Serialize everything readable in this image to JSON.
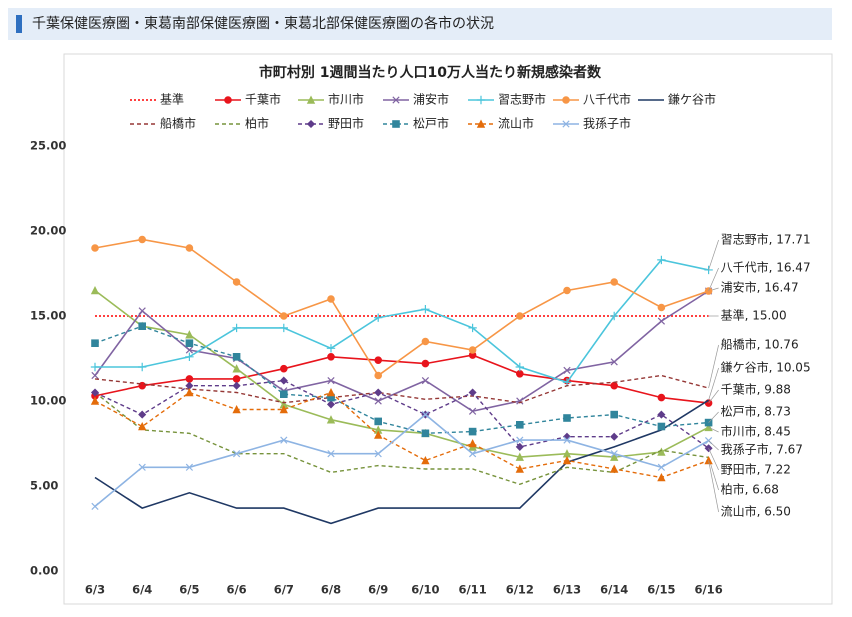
{
  "page_title": "千葉保健医療圏・東葛南部保健医療圏・東葛北部保健医療圏の各市の状況",
  "chart_data": {
    "type": "line",
    "title": "市町村別 1週間当たり人口10万人当たり新規感染者数",
    "categories": [
      "6/3",
      "6/4",
      "6/5",
      "6/6",
      "6/7",
      "6/8",
      "6/9",
      "6/10",
      "6/11",
      "6/12",
      "6/13",
      "6/14",
      "6/15",
      "6/16"
    ],
    "ylim": [
      0,
      25
    ],
    "yticks": [
      {
        "value": 0,
        "label": "0.00"
      },
      {
        "value": 5,
        "label": "5.00"
      },
      {
        "value": 10,
        "label": "10.00"
      },
      {
        "value": 15,
        "label": "15.00"
      },
      {
        "value": 20,
        "label": "20.00"
      },
      {
        "value": 25,
        "label": "25.00"
      }
    ],
    "series": [
      {
        "name": "基準",
        "color": "#ff0000",
        "dash": "dotted",
        "marker": "none",
        "values": [
          15,
          15,
          15,
          15,
          15,
          15,
          15,
          15,
          15,
          15,
          15,
          15,
          15,
          15
        ],
        "value_labels": [
          null,
          null,
          null,
          null,
          null,
          null,
          null,
          null,
          null,
          null,
          null,
          null,
          null,
          "基準, 15.00"
        ]
      },
      {
        "name": "千葉市",
        "color": "#e8141c",
        "dash": "solid",
        "marker": "circle",
        "values": [
          10.3,
          10.9,
          11.3,
          11.3,
          11.9,
          12.6,
          12.4,
          12.2,
          12.7,
          11.6,
          11.2,
          10.9,
          10.2,
          9.88
        ],
        "value_labels": [
          null,
          null,
          null,
          null,
          null,
          null,
          null,
          null,
          null,
          null,
          null,
          null,
          null,
          "千葉市, 9.88"
        ]
      },
      {
        "name": "市川市",
        "color": "#9bbb59",
        "dash": "solid",
        "marker": "triangle",
        "values": [
          16.5,
          14.4,
          13.9,
          11.9,
          9.8,
          8.9,
          8.3,
          8.1,
          7.3,
          6.7,
          6.9,
          6.7,
          7.0,
          8.45
        ],
        "value_labels": [
          null,
          null,
          null,
          null,
          null,
          null,
          null,
          null,
          null,
          null,
          null,
          null,
          null,
          "市川市, 8.45"
        ]
      },
      {
        "name": "浦安市",
        "color": "#8064a2",
        "dash": "solid",
        "marker": "x",
        "values": [
          11.5,
          15.3,
          13.0,
          12.5,
          10.6,
          11.2,
          10.0,
          11.2,
          9.4,
          10.0,
          11.8,
          12.3,
          14.7,
          16.47
        ],
        "value_labels": [
          null,
          null,
          null,
          null,
          null,
          null,
          null,
          null,
          null,
          null,
          null,
          null,
          null,
          "浦安市, 16.47"
        ]
      },
      {
        "name": "習志野市",
        "color": "#4bc5dc",
        "dash": "solid",
        "marker": "plus",
        "values": [
          12.0,
          12.0,
          12.6,
          14.3,
          14.3,
          13.1,
          14.9,
          15.4,
          14.3,
          12.0,
          11.1,
          15.0,
          18.3,
          17.71
        ],
        "value_labels": [
          null,
          null,
          null,
          null,
          null,
          null,
          null,
          null,
          null,
          null,
          null,
          null,
          null,
          "習志野市, 17.71"
        ]
      },
      {
        "name": "八千代市",
        "color": "#f79646",
        "dash": "solid",
        "marker": "circle",
        "values": [
          19.0,
          19.5,
          19.0,
          17.0,
          15.0,
          16.0,
          11.5,
          13.5,
          13.0,
          15.0,
          16.5,
          17.0,
          15.5,
          16.47
        ],
        "value_labels": [
          null,
          null,
          null,
          null,
          null,
          null,
          null,
          null,
          null,
          null,
          null,
          null,
          null,
          "八千代市, 16.47"
        ]
      },
      {
        "name": "鎌ケ谷市",
        "color": "#1f3864",
        "dash": "solid",
        "marker": "none",
        "values": [
          5.5,
          3.7,
          4.6,
          3.7,
          3.7,
          2.8,
          3.7,
          3.7,
          3.7,
          3.7,
          6.4,
          7.3,
          8.3,
          10.05
        ],
        "value_labels": [
          null,
          null,
          null,
          null,
          null,
          null,
          null,
          null,
          null,
          null,
          null,
          null,
          null,
          "鎌ケ谷市, 10.05"
        ]
      },
      {
        "name": "船橋市",
        "color": "#953735",
        "dash": "dashed",
        "marker": "none",
        "values": [
          11.3,
          11.0,
          10.7,
          10.5,
          9.9,
          10.2,
          10.5,
          10.1,
          10.3,
          9.9,
          10.9,
          11.1,
          11.5,
          10.76
        ],
        "value_labels": [
          null,
          null,
          null,
          null,
          null,
          null,
          null,
          null,
          null,
          null,
          null,
          null,
          null,
          "船橋市, 10.76"
        ]
      },
      {
        "name": "柏市",
        "color": "#77933c",
        "dash": "dashed",
        "marker": "none",
        "values": [
          10.5,
          8.3,
          8.1,
          6.9,
          6.9,
          5.8,
          6.2,
          6.0,
          6.0,
          5.1,
          6.1,
          5.8,
          7.1,
          6.68
        ],
        "value_labels": [
          null,
          null,
          null,
          null,
          null,
          null,
          null,
          null,
          null,
          null,
          null,
          null,
          null,
          "柏市, 6.68"
        ]
      },
      {
        "name": "野田市",
        "color": "#5f3c8a",
        "dash": "dashed",
        "marker": "diamond",
        "values": [
          10.5,
          9.2,
          10.9,
          10.9,
          11.2,
          9.8,
          10.5,
          9.2,
          10.5,
          7.3,
          7.9,
          7.9,
          9.2,
          7.22
        ],
        "value_labels": [
          null,
          null,
          null,
          null,
          null,
          null,
          null,
          null,
          null,
          null,
          null,
          null,
          null,
          "野田市, 7.22"
        ]
      },
      {
        "name": "松戸市",
        "color": "#31859c",
        "dash": "dashed",
        "marker": "square",
        "values": [
          13.4,
          14.4,
          13.4,
          12.6,
          10.4,
          10.2,
          8.8,
          8.1,
          8.2,
          8.6,
          9.0,
          9.2,
          8.5,
          8.73
        ],
        "value_labels": [
          null,
          null,
          null,
          null,
          null,
          null,
          null,
          null,
          null,
          null,
          null,
          null,
          null,
          "松戸市, 8.73"
        ]
      },
      {
        "name": "流山市",
        "color": "#e46c0a",
        "dash": "dashed",
        "marker": "triangle",
        "values": [
          10.0,
          8.5,
          10.5,
          9.5,
          9.5,
          10.5,
          8.0,
          6.5,
          7.5,
          6.0,
          6.5,
          6.0,
          5.5,
          6.5
        ],
        "value_labels": [
          null,
          null,
          null,
          null,
          null,
          null,
          null,
          null,
          null,
          null,
          null,
          null,
          null,
          "流山市, 6.50"
        ]
      },
      {
        "name": "我孫子市",
        "color": "#8eb4e3",
        "dash": "solid",
        "marker": "x",
        "values": [
          3.8,
          6.1,
          6.1,
          6.9,
          7.7,
          6.9,
          6.9,
          9.2,
          6.9,
          7.7,
          7.7,
          6.9,
          6.1,
          7.67
        ],
        "value_labels": [
          null,
          null,
          null,
          null,
          null,
          null,
          null,
          null,
          null,
          null,
          null,
          null,
          null,
          "我孫子市, 7.67"
        ]
      }
    ]
  }
}
